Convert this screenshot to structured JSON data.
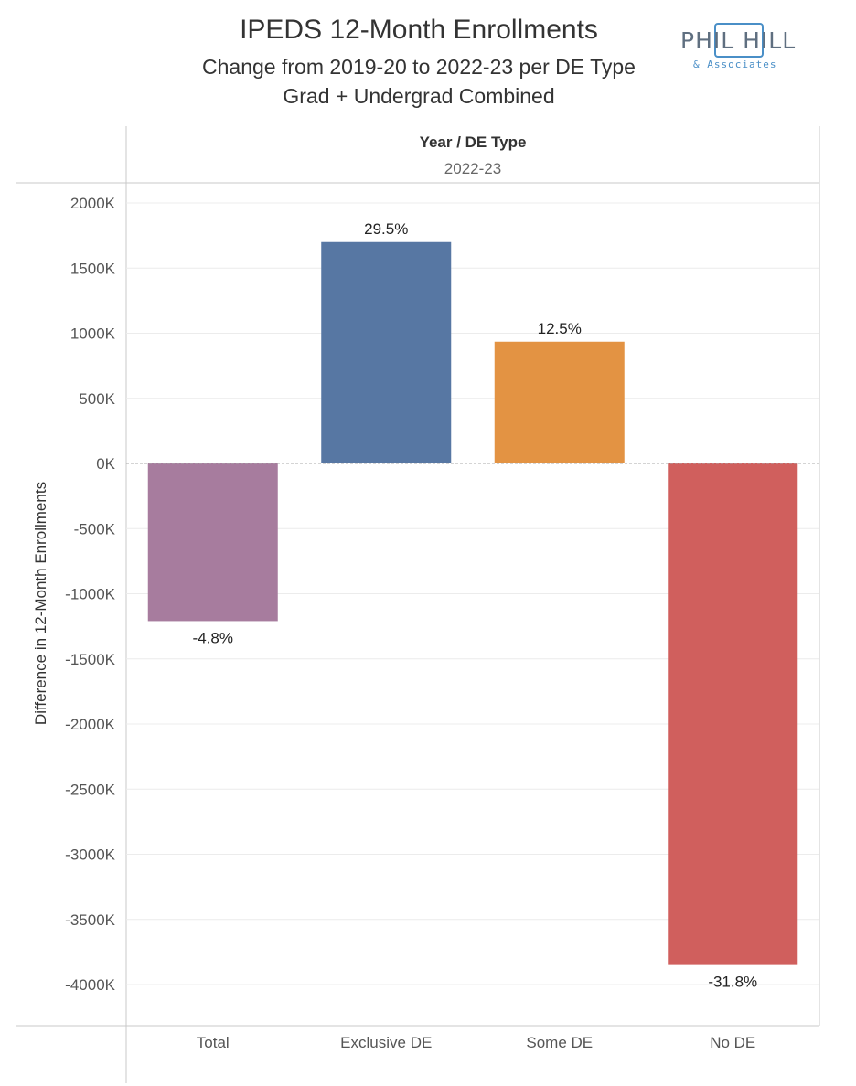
{
  "chart_data": {
    "type": "bar",
    "title": "IPEDS 12-Month Enrollments",
    "subtitle_lines": [
      "Change from 2019-20 to 2022-23 per DE Type",
      "Grad + Undergrad Combined"
    ],
    "header": {
      "title": "Year / DE Type",
      "subtitle": "2022-23"
    },
    "ylabel": "Difference in 12-Month Enrollments",
    "xlabel": "",
    "categories": [
      "Total",
      "Exclusive DE",
      "Some DE",
      "No DE"
    ],
    "values": [
      -1210000,
      1700000,
      935000,
      -3850000
    ],
    "data_labels": [
      "-4.8%",
      "29.5%",
      "12.5%",
      "-31.8%"
    ],
    "colors": [
      "#a77c9e",
      "#5777a3",
      "#e39343",
      "#d05f5d"
    ],
    "ylim": [
      -4300000,
      2200000
    ],
    "yticks": [
      2000000,
      1500000,
      1000000,
      500000,
      0,
      -500000,
      -1000000,
      -1500000,
      -2000000,
      -2500000,
      -3000000,
      -3500000,
      -4000000
    ],
    "ytick_labels": [
      "2000K",
      "1500K",
      "1000K",
      "500K",
      "0K",
      "-500K",
      "-1000K",
      "-1500K",
      "-2000K",
      "-2500K",
      "-3000K",
      "-3500K",
      "-4000K"
    ],
    "grid": true,
    "legend": "none"
  },
  "logo": {
    "main": "PHIL HILL",
    "sub": "& Associates"
  }
}
